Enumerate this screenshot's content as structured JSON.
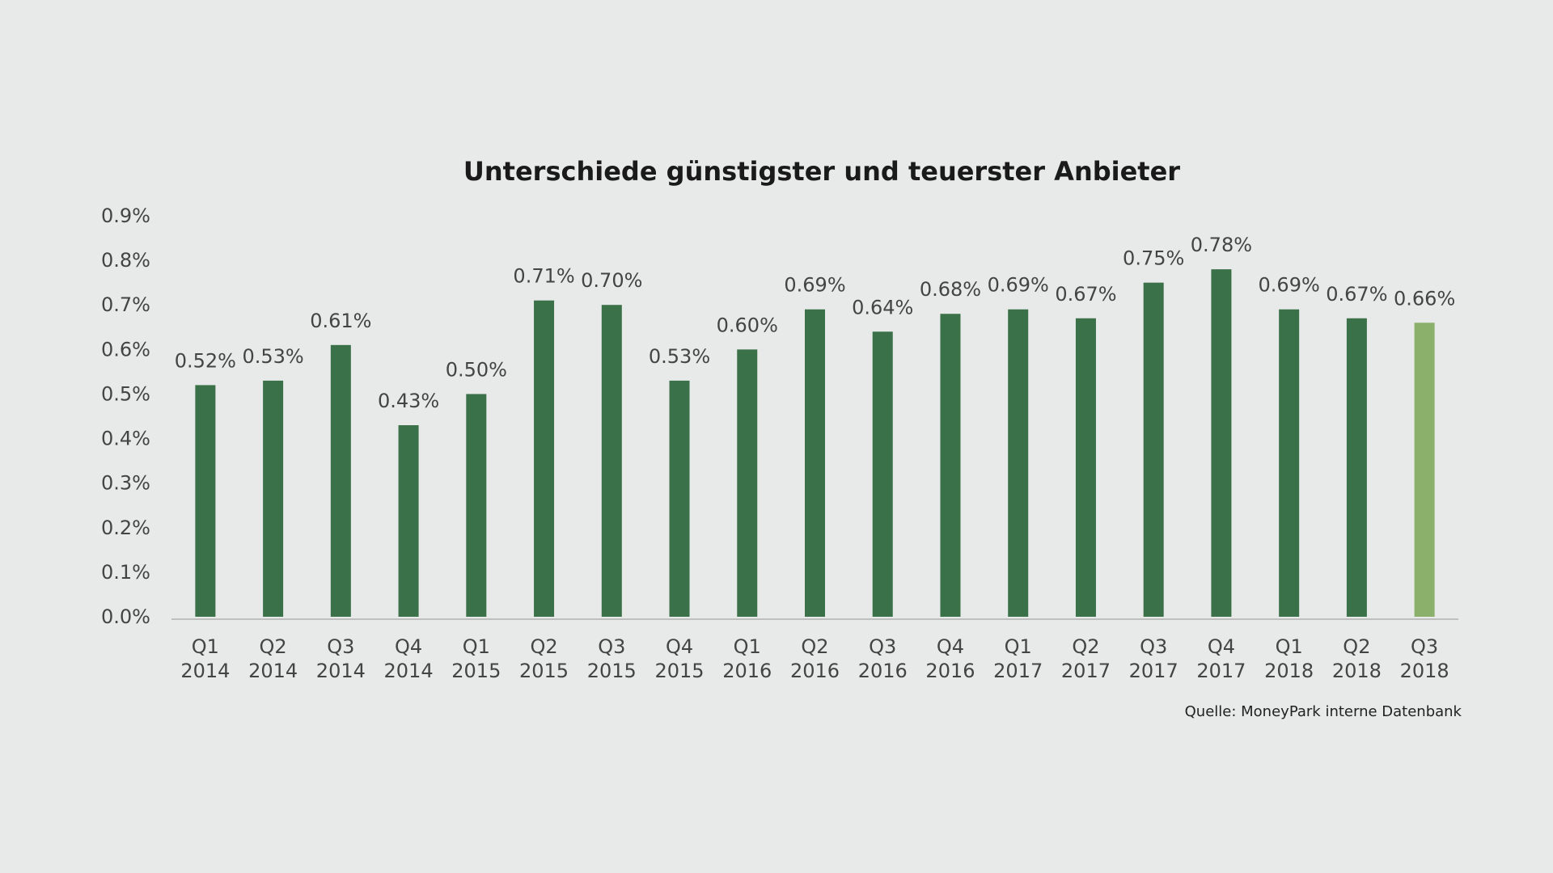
{
  "chart_data": {
    "type": "bar",
    "title": "Unterschiede günstigster und teuerster Anbieter",
    "xlabel": "",
    "ylabel": "",
    "ylim": [
      0,
      0.9
    ],
    "yticks": [
      "0.0%",
      "0.1%",
      "0.2%",
      "0.3%",
      "0.4%",
      "0.5%",
      "0.6%",
      "0.7%",
      "0.8%",
      "0.9%"
    ],
    "grid": false,
    "categories": [
      [
        "Q1",
        "2014"
      ],
      [
        "Q2",
        "2014"
      ],
      [
        "Q3",
        "2014"
      ],
      [
        "Q4",
        "2014"
      ],
      [
        "Q1",
        "2015"
      ],
      [
        "Q2",
        "2015"
      ],
      [
        "Q3",
        "2015"
      ],
      [
        "Q4",
        "2015"
      ],
      [
        "Q1",
        "2016"
      ],
      [
        "Q2",
        "2016"
      ],
      [
        "Q3",
        "2016"
      ],
      [
        "Q4",
        "2016"
      ],
      [
        "Q1",
        "2017"
      ],
      [
        "Q2",
        "2017"
      ],
      [
        "Q3",
        "2017"
      ],
      [
        "Q4",
        "2017"
      ],
      [
        "Q1",
        "2018"
      ],
      [
        "Q2",
        "2018"
      ],
      [
        "Q3",
        "2018"
      ]
    ],
    "values": [
      0.52,
      0.53,
      0.61,
      0.43,
      0.5,
      0.71,
      0.7,
      0.53,
      0.6,
      0.69,
      0.64,
      0.68,
      0.69,
      0.67,
      0.75,
      0.78,
      0.69,
      0.67,
      0.66
    ],
    "data_labels": [
      "0.52%",
      "0.53%",
      "0.61%",
      "0.43%",
      "0.50%",
      "0.71%",
      "0.70%",
      "0.53%",
      "0.60%",
      "0.69%",
      "0.64%",
      "0.68%",
      "0.69%",
      "0.67%",
      "0.75%",
      "0.78%",
      "0.69%",
      "0.67%",
      "0.66%"
    ],
    "colors": {
      "bar": "#3b7149",
      "bar_highlight": "#8bb06b",
      "axis": "#bfbfbf"
    },
    "highlight_index": 18,
    "source": "Quelle: MoneyPark interne Datenbank"
  }
}
